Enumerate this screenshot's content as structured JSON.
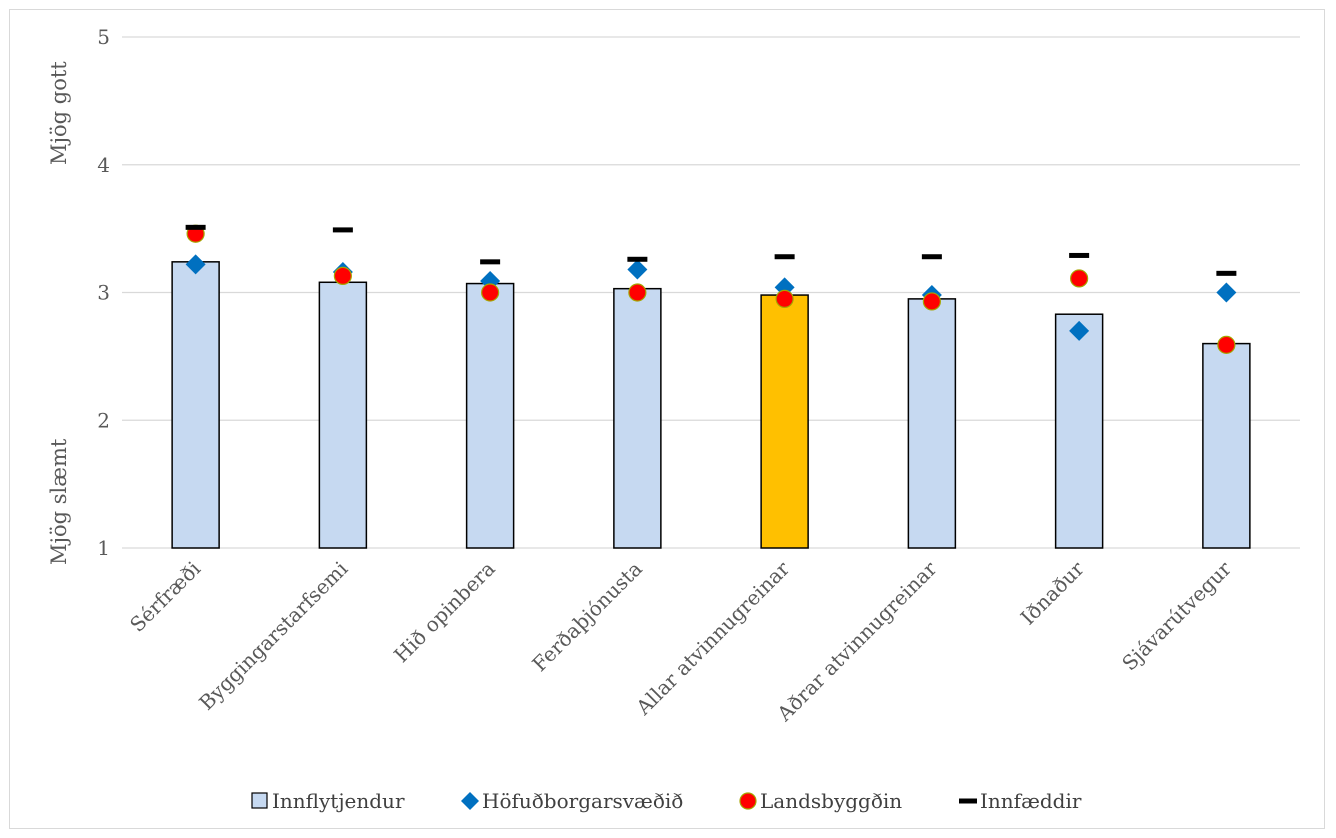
{
  "chart_data": {
    "type": "bar",
    "categories": [
      "Sérfræði",
      "Byggingarstarfsemi",
      "Hið opinbera",
      "Ferðaþjónusta",
      "Allar atvinnugreinar",
      "Aðrar atvinnugreinar",
      "Iðnaður",
      "Sjávarútvegur"
    ],
    "series": [
      {
        "name": "Innflytjendur",
        "kind": "bar",
        "color": "#c6d9f1",
        "values": [
          3.24,
          3.08,
          3.07,
          3.03,
          2.98,
          2.95,
          2.83,
          2.6
        ]
      },
      {
        "name": "Höfuðborgarsvæðið",
        "kind": "marker-diamond",
        "color": "#0070c0",
        "values": [
          3.22,
          3.16,
          3.09,
          3.18,
          3.04,
          2.98,
          2.7,
          3.0
        ]
      },
      {
        "name": "Landsbyggðin",
        "kind": "marker-circle",
        "color": "#ff0000",
        "values": [
          3.46,
          3.13,
          3.0,
          3.0,
          2.95,
          2.93,
          3.11,
          2.59
        ]
      },
      {
        "name": "Innfæddir",
        "kind": "marker-dash",
        "color": "#000000",
        "values": [
          3.51,
          3.49,
          3.24,
          3.26,
          3.28,
          3.28,
          3.29,
          3.15
        ]
      }
    ],
    "highlight": {
      "category": "Allar atvinnugreinar",
      "color": "#ffc000"
    },
    "ylim": [
      1,
      5
    ],
    "yticks": [
      "1",
      "2",
      "3",
      "4",
      "5"
    ],
    "y_annotations": {
      "top": "Mjög gott",
      "bottom": "Mjög slæmt"
    },
    "grid": true,
    "legend_position": "bottom"
  }
}
